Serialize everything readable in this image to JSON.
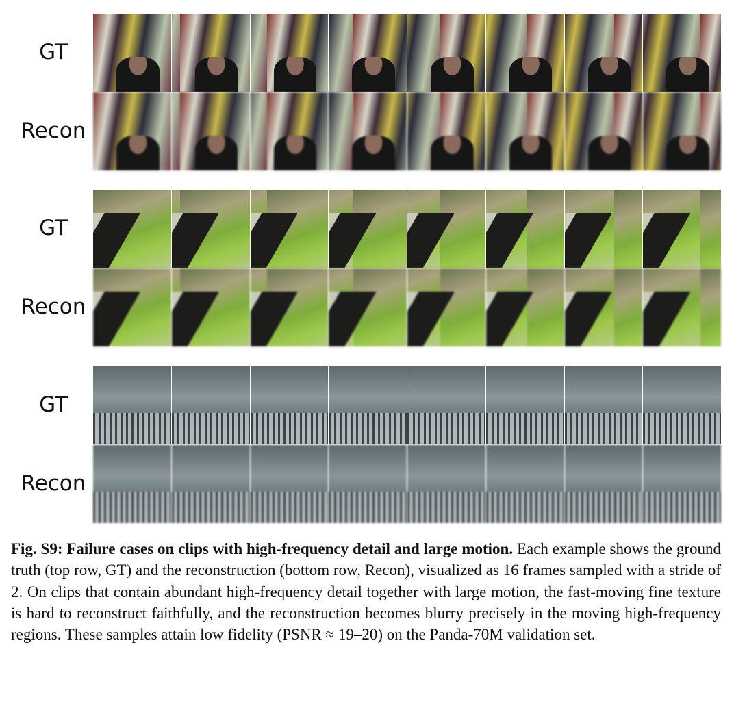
{
  "figure": {
    "groups": [
      {
        "rows": [
          {
            "label": "GT"
          },
          {
            "label": "Recon"
          }
        ]
      },
      {
        "rows": [
          {
            "label": "GT"
          },
          {
            "label": "Recon"
          }
        ]
      },
      {
        "rows": [
          {
            "label": "GT"
          },
          {
            "label": "Recon"
          }
        ]
      }
    ],
    "caption": {
      "label": "Fig. S9:",
      "title": "Failure cases on clips with high-frequency detail and large motion.",
      "text": "Each example shows the ground truth (top row, GT) and the reconstruction (bottom row, Recon), visualized as 16 frames sampled with a stride of 2. On clips that contain abundant high-frequency detail together with large motion, the fast-moving fine texture is hard to reconstruct faithfully, and the reconstruction becomes blurry precisely in the moving high-frequency regions. These samples attain low fidelity (PSNR ≈ 19–20) on the Panda-70M validation set."
    }
  }
}
